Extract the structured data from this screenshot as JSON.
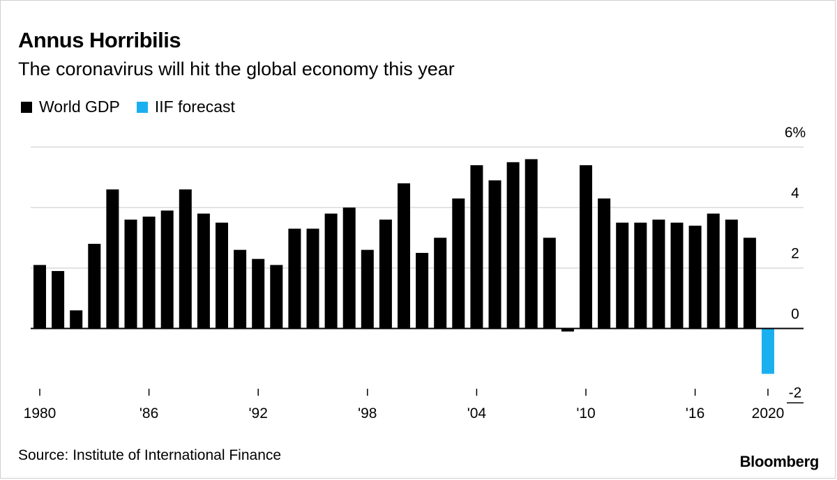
{
  "title": "Annus Horribilis",
  "subtitle": "The coronavirus will hit the global economy this year",
  "legend": [
    {
      "label": "World GDP",
      "color": "#000000"
    },
    {
      "label": "IIF forecast",
      "color": "#1ab0f0"
    }
  ],
  "source": "Source: Institute of International Finance",
  "brand": "Bloomberg",
  "chart_data": {
    "type": "bar",
    "title": "Annus Horribilis",
    "subtitle": "The coronavirus will hit the global economy this year",
    "xlabel": "",
    "ylabel": "",
    "ylim": [
      -2,
      6
    ],
    "y_ticks": [
      {
        "value": 6,
        "label": "6%"
      },
      {
        "value": 4,
        "label": "4"
      },
      {
        "value": 2,
        "label": "2"
      },
      {
        "value": 0,
        "label": "0"
      },
      {
        "value": -2,
        "label": "-2"
      }
    ],
    "x_tick_labels": [
      {
        "year": 1980,
        "label": "1980"
      },
      {
        "year": 1986,
        "label": "'86"
      },
      {
        "year": 1992,
        "label": "'92"
      },
      {
        "year": 1998,
        "label": "'98"
      },
      {
        "year": 2004,
        "label": "'04"
      },
      {
        "year": 2010,
        "label": "'10"
      },
      {
        "year": 2016,
        "label": "'16"
      },
      {
        "year": 2020,
        "label": "2020"
      }
    ],
    "grid": true,
    "y_axis_position": "right",
    "legend_position": "top-left",
    "categories": [
      1980,
      1981,
      1982,
      1983,
      1984,
      1985,
      1986,
      1987,
      1988,
      1989,
      1990,
      1991,
      1992,
      1993,
      1994,
      1995,
      1996,
      1997,
      1998,
      1999,
      2000,
      2001,
      2002,
      2003,
      2004,
      2005,
      2006,
      2007,
      2008,
      2009,
      2010,
      2011,
      2012,
      2013,
      2014,
      2015,
      2016,
      2017,
      2018,
      2019,
      2020
    ],
    "series": [
      {
        "name": "World GDP",
        "color": "#000000",
        "values": [
          2.1,
          1.9,
          0.6,
          2.8,
          4.6,
          3.6,
          3.7,
          3.9,
          4.6,
          3.8,
          3.5,
          2.6,
          2.3,
          2.1,
          3.3,
          3.3,
          3.8,
          4.0,
          2.6,
          3.6,
          4.8,
          2.5,
          3.0,
          4.3,
          5.4,
          4.9,
          5.5,
          5.6,
          3.0,
          -0.1,
          5.4,
          4.3,
          3.5,
          3.5,
          3.6,
          3.5,
          3.4,
          3.8,
          3.6,
          3.0,
          null
        ]
      },
      {
        "name": "IIF forecast",
        "color": "#1ab0f0",
        "values": [
          null,
          null,
          null,
          null,
          null,
          null,
          null,
          null,
          null,
          null,
          null,
          null,
          null,
          null,
          null,
          null,
          null,
          null,
          null,
          null,
          null,
          null,
          null,
          null,
          null,
          null,
          null,
          null,
          null,
          null,
          null,
          null,
          null,
          null,
          null,
          null,
          null,
          null,
          null,
          null,
          -1.5
        ]
      }
    ]
  }
}
